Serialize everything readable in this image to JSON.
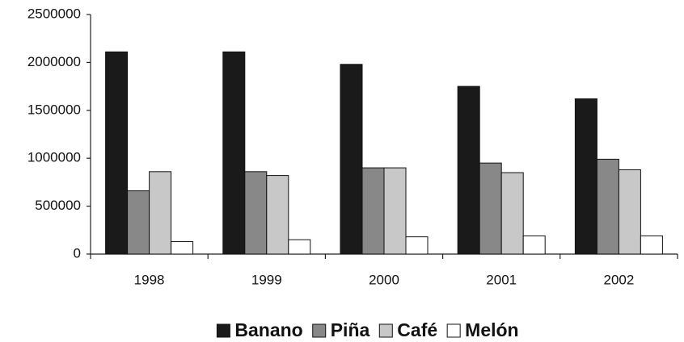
{
  "chart_data": {
    "type": "bar",
    "categories": [
      "1998",
      "1999",
      "2000",
      "2001",
      "2002"
    ],
    "series": [
      {
        "name": "Banano",
        "color": "#1a1a1a",
        "values": [
          2110000,
          2110000,
          1980000,
          1750000,
          1620000
        ]
      },
      {
        "name": "Piña",
        "color": "#888888",
        "values": [
          660000,
          860000,
          900000,
          950000,
          990000
        ]
      },
      {
        "name": "Café",
        "color": "#c8c8c8",
        "values": [
          860000,
          820000,
          900000,
          850000,
          880000
        ]
      },
      {
        "name": "Melón",
        "color": "#ffffff",
        "values": [
          130000,
          150000,
          180000,
          190000,
          190000
        ]
      }
    ],
    "ylim": [
      0,
      2500000
    ],
    "yticks": [
      0,
      500000,
      1000000,
      1500000,
      2000000,
      2500000
    ],
    "grid": false,
    "legend": "bottom"
  }
}
